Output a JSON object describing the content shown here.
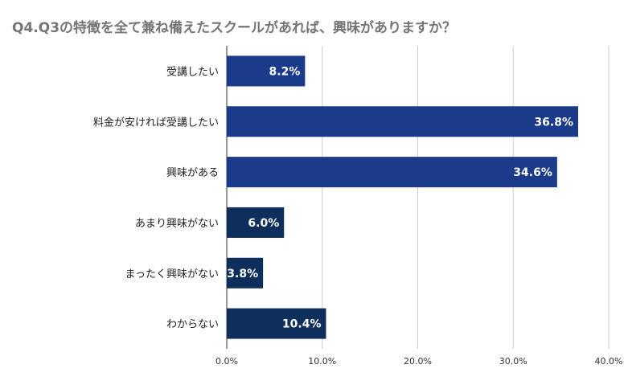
{
  "chart_data": {
    "type": "bar",
    "orientation": "horizontal",
    "title": "Q4.Q3の特徴を全て兼ね備えたスクールがあれば、興味がありますか？",
    "categories": [
      "受講したい",
      "料金が安ければ受講したい",
      "興味がある",
      "あまり興味がない",
      "まったく興味がない",
      "わからない"
    ],
    "values": [
      8.2,
      36.8,
      34.6,
      6.0,
      3.8,
      10.4
    ],
    "data_labels": [
      "8.2%",
      "36.8%",
      "34.6%",
      "6.0%",
      "3.8%",
      "10.4%"
    ],
    "x_ticks": [
      "0.0%",
      "10.0%",
      "20.0%",
      "30.0%",
      "40.0%"
    ],
    "xlim": [
      0,
      40
    ],
    "grid": true,
    "legend": "none",
    "colors": [
      "#1a3a8a",
      "#1a3a8a",
      "#1a3a8a",
      "#0e2f5c",
      "#0e2f5c",
      "#0e2f5c"
    ]
  }
}
